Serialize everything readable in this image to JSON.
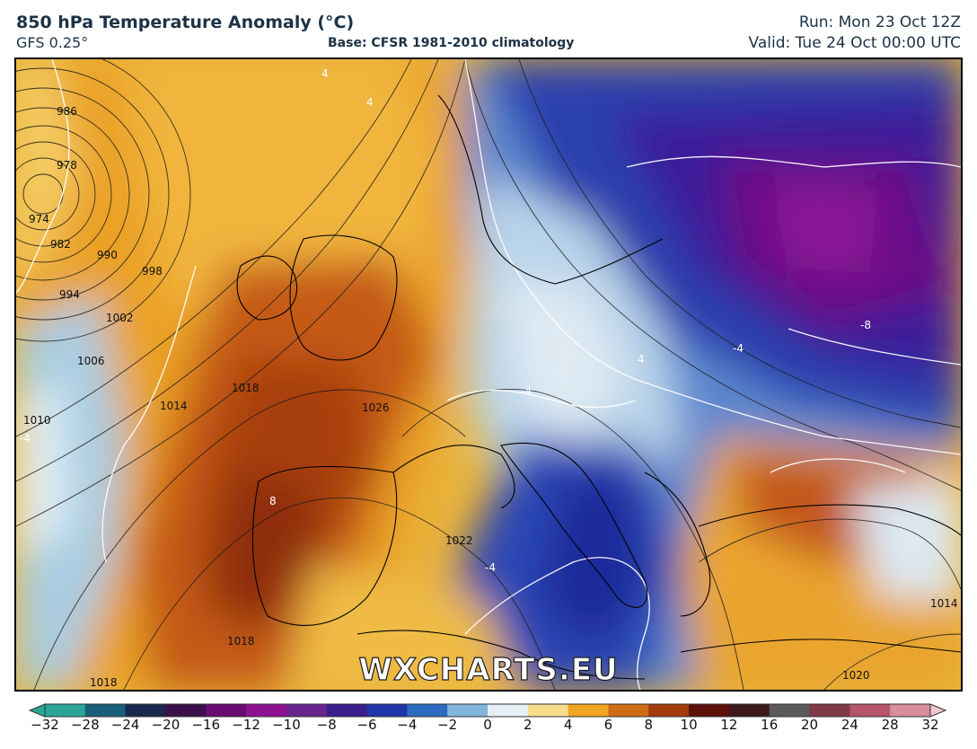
{
  "header": {
    "title": "850 hPa Temperature Anomaly (°C)",
    "model": "GFS 0.25°",
    "base": "Base: CFSR 1981-2010 climatology",
    "run": "Run: Mon 23 Oct 12Z",
    "valid": "Valid: Tue 24 Oct 00:00 UTC"
  },
  "watermark": "WXCHARTS.EU",
  "colorbar": {
    "ticks": [
      "−32",
      "−28",
      "−24",
      "−20",
      "−16",
      "−12",
      "−10",
      "−8",
      "−6",
      "−4",
      "−2",
      "0",
      "2",
      "4",
      "6",
      "8",
      "10",
      "12",
      "16",
      "20",
      "24",
      "28",
      "32"
    ],
    "colors": [
      "#2ba598",
      "#1a5f78",
      "#19264d",
      "#3b0f4a",
      "#6a0a73",
      "#8e1191",
      "#68248f",
      "#3a1e8e",
      "#1f35a8",
      "#2e6cc2",
      "#82b5dc",
      "#e6eff4",
      "#f5dd8c",
      "#f1a523",
      "#cf6c14",
      "#a43b0d",
      "#5e0f07",
      "#3b1a1a",
      "#5a5a5a",
      "#7e3a46",
      "#b65468",
      "#d98e9b",
      "#f0c7cd"
    ]
  },
  "map_labels": {
    "isobars": [
      "986",
      "978",
      "974",
      "982",
      "990",
      "998",
      "994",
      "1002",
      "1006",
      "1010",
      "1014",
      "1018",
      "1026",
      "1022",
      "1018",
      "1014",
      "1020",
      "1018"
    ],
    "isotherms": [
      "4",
      "4",
      "-4",
      "4",
      "8",
      "-4",
      "-4",
      "-8",
      "-4"
    ]
  },
  "icons": {
    "colorbar_min_extend": "triangle-left-icon",
    "colorbar_max_extend": "triangle-right-icon"
  }
}
